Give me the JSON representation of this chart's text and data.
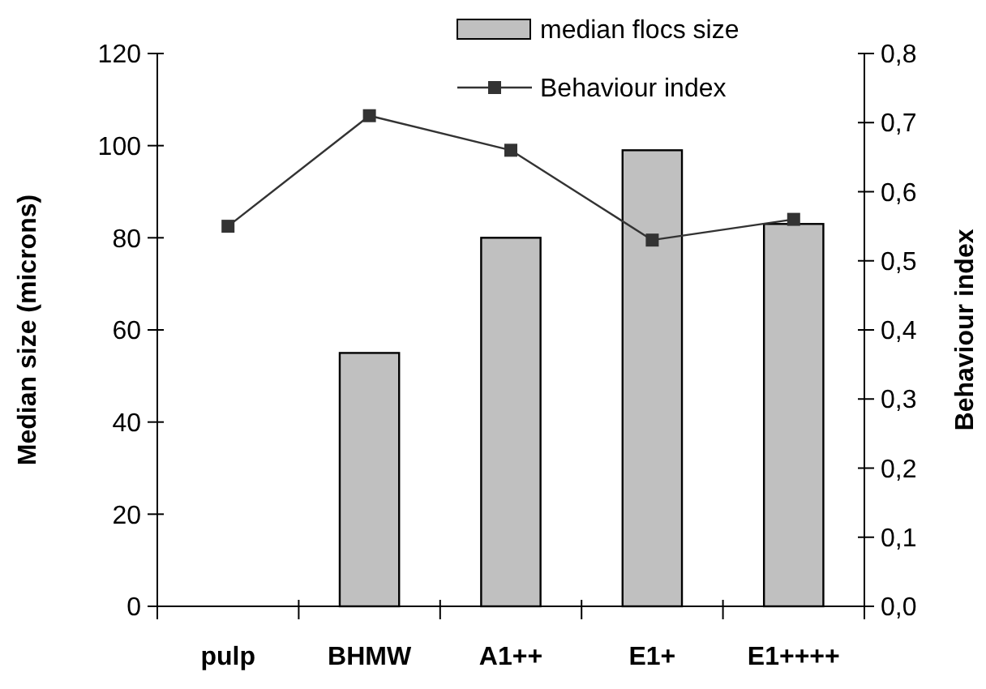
{
  "chart_data": {
    "type": "bar",
    "categories": [
      "pulp",
      "BHMW",
      "A1++",
      "E1+",
      "E1++++"
    ],
    "series": [
      {
        "name": "median flocs size",
        "color": "#c0c0c0",
        "values": [
          null,
          55,
          80,
          99,
          83
        ]
      },
      {
        "name": "Behaviour index",
        "type": "line",
        "axis": "y2",
        "color": "#333333",
        "marker": "square",
        "values": [
          0.55,
          0.71,
          0.66,
          0.53,
          0.56
        ]
      }
    ],
    "ylabel": "Median size (microns)",
    "y2label": "Behaviour index",
    "ylim": [
      0,
      120
    ],
    "yticks": [
      0,
      20,
      40,
      60,
      80,
      100,
      120
    ],
    "y2lim": [
      0,
      0.8
    ],
    "y2ticks": [
      {
        "value": 0,
        "label": "0,0"
      },
      {
        "value": 0.1,
        "label": "0,1"
      },
      {
        "value": 0.2,
        "label": "0,2"
      },
      {
        "value": 0.3,
        "label": "0,3"
      },
      {
        "value": 0.4,
        "label": "0,4"
      },
      {
        "value": 0.5,
        "label": "0,5"
      },
      {
        "value": 0.6,
        "label": "0,6"
      },
      {
        "value": 0.7,
        "label": "0,7"
      },
      {
        "value": 0.8,
        "label": "0,8"
      }
    ],
    "legend": "top right",
    "grid": false
  }
}
